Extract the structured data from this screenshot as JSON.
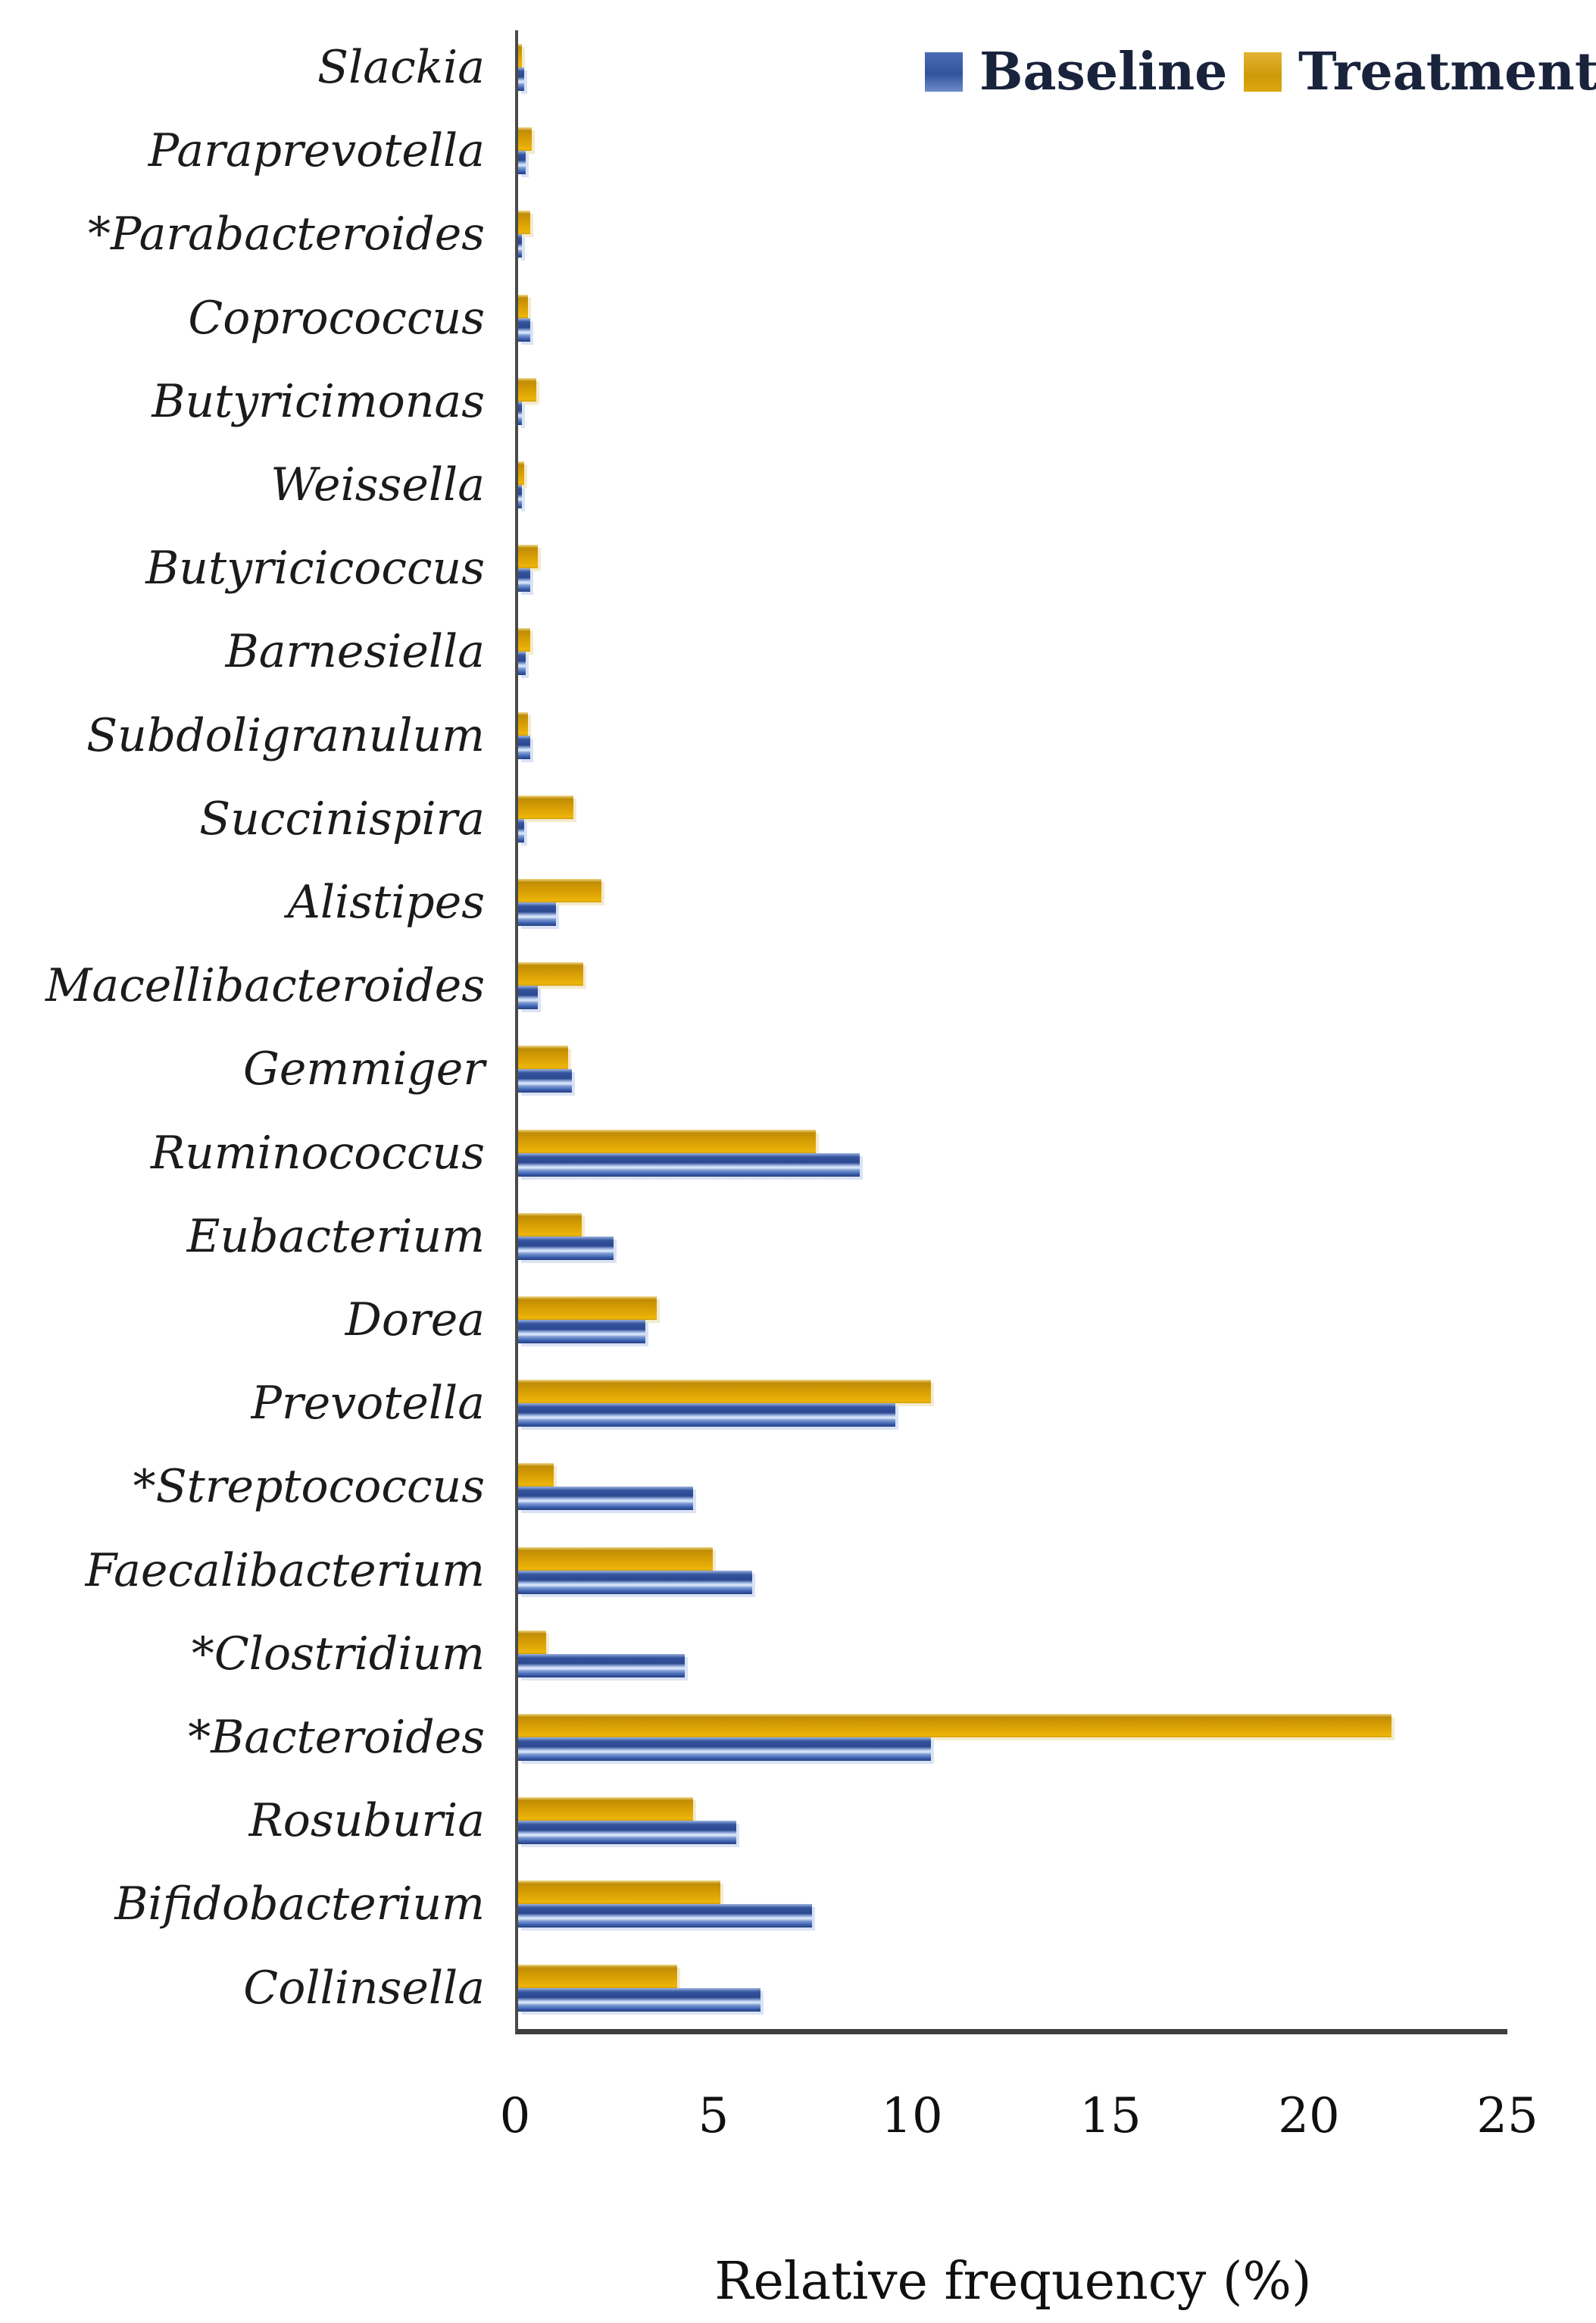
{
  "legend": {
    "baseline_label": "Baseline",
    "treatment_label": "Treatment"
  },
  "colors": {
    "baseline": "#34549e",
    "treatment": "#d9a511",
    "axis": "#3f3f3f",
    "category_text": "#1b1b1b",
    "legend_text": "#19233c"
  },
  "chart_data": {
    "type": "bar",
    "orientation": "horizontal",
    "title": "",
    "xlabel": "Relative frequency (%)",
    "ylabel": "",
    "xlim": [
      0,
      25
    ],
    "xticks": [
      "0",
      "5",
      "10",
      "15",
      "20",
      "25"
    ],
    "grid": false,
    "legend_position": "top-right",
    "bar_order_top_to_bottom": [
      "Treatment",
      "Baseline"
    ],
    "categories": [
      "Slackia",
      "Paraprevotella",
      "*Parabacteroides",
      "Coprococcus",
      "Butyricimonas",
      "Weissella",
      "Butyricicoccus",
      "Barnesiella",
      "Subdoligranulum",
      "Succinispira",
      "Alistipes",
      "Macellibacteroides",
      "Gemmiger",
      "Ruminococcus",
      "Eubacterium",
      "Dorea",
      "Prevotella",
      "*Streptococcus",
      "Faecalibacterium",
      "*Clostridium",
      "*Bacteroides",
      "Rosuburia",
      "Bifidobacterium",
      "Collinsella"
    ],
    "series": [
      {
        "name": "Baseline",
        "color": "#34549e",
        "values": [
          0.15,
          0.2,
          0.1,
          0.3,
          0.1,
          0.1,
          0.3,
          0.2,
          0.3,
          0.15,
          0.95,
          0.5,
          1.35,
          8.6,
          2.4,
          3.2,
          9.5,
          4.4,
          5.9,
          4.2,
          10.4,
          5.5,
          7.4,
          6.1
        ]
      },
      {
        "name": "Treatment",
        "color": "#d9a511",
        "values": [
          0.1,
          0.35,
          0.3,
          0.25,
          0.45,
          0.15,
          0.5,
          0.3,
          0.25,
          1.4,
          2.1,
          1.65,
          1.25,
          7.5,
          1.6,
          3.5,
          10.4,
          0.9,
          4.9,
          0.7,
          22.0,
          4.4,
          5.1,
          4.0
        ]
      }
    ]
  }
}
